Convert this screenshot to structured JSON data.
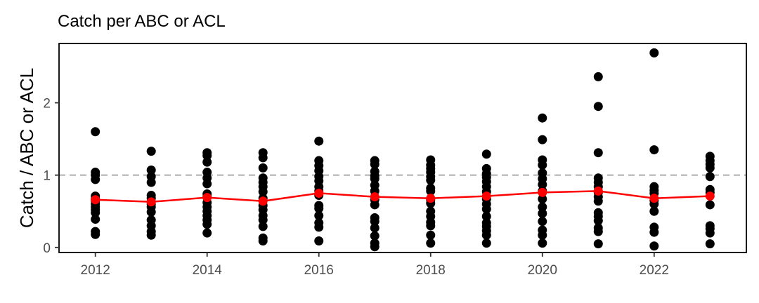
{
  "chart_data": {
    "type": "scatter",
    "title": "Catch per ABC or ACL",
    "xlabel": "",
    "ylabel": "Catch / ABC or ACL",
    "xlim": [
      2011.35,
      2023.65
    ],
    "ylim": [
      -0.07,
      2.82
    ],
    "x_ticks": [
      2012,
      2014,
      2016,
      2018,
      2020,
      2022
    ],
    "y_ticks": [
      0,
      1,
      2
    ],
    "reference_line": {
      "y": 1,
      "style": "dashed",
      "color": "#b3b3b3"
    },
    "grid": false,
    "colors": {
      "points": "#000000",
      "mean_line": "#ff0000",
      "axis_text": "#4d4d4d",
      "panel_border": "#000000"
    },
    "series": [
      {
        "type": "scatter",
        "points": [
          {
            "x": 2012,
            "y": 1.6
          },
          {
            "x": 2012,
            "y": 1.04
          },
          {
            "x": 2012,
            "y": 1.0
          },
          {
            "x": 2012,
            "y": 0.94
          },
          {
            "x": 2012,
            "y": 0.71
          },
          {
            "x": 2012,
            "y": 0.67
          },
          {
            "x": 2012,
            "y": 0.64
          },
          {
            "x": 2012,
            "y": 0.6
          },
          {
            "x": 2012,
            "y": 0.56
          },
          {
            "x": 2012,
            "y": 0.52
          },
          {
            "x": 2012,
            "y": 0.48
          },
          {
            "x": 2012,
            "y": 0.39
          },
          {
            "x": 2012,
            "y": 0.22
          },
          {
            "x": 2012,
            "y": 0.18
          },
          {
            "x": 2013,
            "y": 1.33
          },
          {
            "x": 2013,
            "y": 1.07
          },
          {
            "x": 2013,
            "y": 0.98
          },
          {
            "x": 2013,
            "y": 0.9
          },
          {
            "x": 2013,
            "y": 0.72
          },
          {
            "x": 2013,
            "y": 0.68
          },
          {
            "x": 2013,
            "y": 0.6
          },
          {
            "x": 2013,
            "y": 0.56
          },
          {
            "x": 2013,
            "y": 0.49
          },
          {
            "x": 2013,
            "y": 0.38
          },
          {
            "x": 2013,
            "y": 0.3
          },
          {
            "x": 2013,
            "y": 0.22
          },
          {
            "x": 2013,
            "y": 0.17
          },
          {
            "x": 2014,
            "y": 1.31
          },
          {
            "x": 2014,
            "y": 1.27
          },
          {
            "x": 2014,
            "y": 1.18
          },
          {
            "x": 2014,
            "y": 1.04
          },
          {
            "x": 2014,
            "y": 0.96
          },
          {
            "x": 2014,
            "y": 0.88
          },
          {
            "x": 2014,
            "y": 0.74
          },
          {
            "x": 2014,
            "y": 0.7
          },
          {
            "x": 2014,
            "y": 0.62
          },
          {
            "x": 2014,
            "y": 0.56
          },
          {
            "x": 2014,
            "y": 0.5
          },
          {
            "x": 2014,
            "y": 0.44
          },
          {
            "x": 2014,
            "y": 0.38
          },
          {
            "x": 2014,
            "y": 0.32
          },
          {
            "x": 2014,
            "y": 0.2
          },
          {
            "x": 2015,
            "y": 1.31
          },
          {
            "x": 2015,
            "y": 1.24
          },
          {
            "x": 2015,
            "y": 1.1
          },
          {
            "x": 2015,
            "y": 0.96
          },
          {
            "x": 2015,
            "y": 0.9
          },
          {
            "x": 2015,
            "y": 0.84
          },
          {
            "x": 2015,
            "y": 0.77
          },
          {
            "x": 2015,
            "y": 0.68
          },
          {
            "x": 2015,
            "y": 0.58
          },
          {
            "x": 2015,
            "y": 0.52
          },
          {
            "x": 2015,
            "y": 0.44
          },
          {
            "x": 2015,
            "y": 0.38
          },
          {
            "x": 2015,
            "y": 0.29
          },
          {
            "x": 2015,
            "y": 0.13
          },
          {
            "x": 2015,
            "y": 0.09
          },
          {
            "x": 2016,
            "y": 1.47
          },
          {
            "x": 2016,
            "y": 1.2
          },
          {
            "x": 2016,
            "y": 1.13
          },
          {
            "x": 2016,
            "y": 1.06
          },
          {
            "x": 2016,
            "y": 0.98
          },
          {
            "x": 2016,
            "y": 0.92
          },
          {
            "x": 2016,
            "y": 0.84
          },
          {
            "x": 2016,
            "y": 0.78
          },
          {
            "x": 2016,
            "y": 0.72
          },
          {
            "x": 2016,
            "y": 0.58
          },
          {
            "x": 2016,
            "y": 0.54
          },
          {
            "x": 2016,
            "y": 0.44
          },
          {
            "x": 2016,
            "y": 0.34
          },
          {
            "x": 2016,
            "y": 0.28
          },
          {
            "x": 2016,
            "y": 0.09
          },
          {
            "x": 2017,
            "y": 1.2
          },
          {
            "x": 2017,
            "y": 1.15
          },
          {
            "x": 2017,
            "y": 1.05
          },
          {
            "x": 2017,
            "y": 0.99
          },
          {
            "x": 2017,
            "y": 0.95
          },
          {
            "x": 2017,
            "y": 0.86
          },
          {
            "x": 2017,
            "y": 0.78
          },
          {
            "x": 2017,
            "y": 0.66
          },
          {
            "x": 2017,
            "y": 0.59
          },
          {
            "x": 2017,
            "y": 0.41
          },
          {
            "x": 2017,
            "y": 0.36
          },
          {
            "x": 2017,
            "y": 0.27
          },
          {
            "x": 2017,
            "y": 0.16
          },
          {
            "x": 2017,
            "y": 0.06
          },
          {
            "x": 2017,
            "y": 0.01
          },
          {
            "x": 2018,
            "y": 1.21
          },
          {
            "x": 2018,
            "y": 1.14
          },
          {
            "x": 2018,
            "y": 1.09
          },
          {
            "x": 2018,
            "y": 1.04
          },
          {
            "x": 2018,
            "y": 0.98
          },
          {
            "x": 2018,
            "y": 0.93
          },
          {
            "x": 2018,
            "y": 0.82
          },
          {
            "x": 2018,
            "y": 0.78
          },
          {
            "x": 2018,
            "y": 0.66
          },
          {
            "x": 2018,
            "y": 0.61
          },
          {
            "x": 2018,
            "y": 0.5
          },
          {
            "x": 2018,
            "y": 0.43
          },
          {
            "x": 2018,
            "y": 0.35
          },
          {
            "x": 2018,
            "y": 0.3
          },
          {
            "x": 2018,
            "y": 0.17
          },
          {
            "x": 2018,
            "y": 0.06
          },
          {
            "x": 2019,
            "y": 1.29
          },
          {
            "x": 2019,
            "y": 1.09
          },
          {
            "x": 2019,
            "y": 1.02
          },
          {
            "x": 2019,
            "y": 0.97
          },
          {
            "x": 2019,
            "y": 0.91
          },
          {
            "x": 2019,
            "y": 0.84
          },
          {
            "x": 2019,
            "y": 0.77
          },
          {
            "x": 2019,
            "y": 0.67
          },
          {
            "x": 2019,
            "y": 0.6
          },
          {
            "x": 2019,
            "y": 0.53
          },
          {
            "x": 2019,
            "y": 0.43
          },
          {
            "x": 2019,
            "y": 0.34
          },
          {
            "x": 2019,
            "y": 0.29
          },
          {
            "x": 2019,
            "y": 0.23
          },
          {
            "x": 2019,
            "y": 0.17
          },
          {
            "x": 2019,
            "y": 0.06
          },
          {
            "x": 2020,
            "y": 1.79
          },
          {
            "x": 2020,
            "y": 1.49
          },
          {
            "x": 2020,
            "y": 1.21
          },
          {
            "x": 2020,
            "y": 1.14
          },
          {
            "x": 2020,
            "y": 1.03
          },
          {
            "x": 2020,
            "y": 0.95
          },
          {
            "x": 2020,
            "y": 0.87
          },
          {
            "x": 2020,
            "y": 0.78
          },
          {
            "x": 2020,
            "y": 0.67
          },
          {
            "x": 2020,
            "y": 0.56
          },
          {
            "x": 2020,
            "y": 0.47
          },
          {
            "x": 2020,
            "y": 0.36
          },
          {
            "x": 2020,
            "y": 0.24
          },
          {
            "x": 2020,
            "y": 0.17
          },
          {
            "x": 2020,
            "y": 0.06
          },
          {
            "x": 2021,
            "y": 2.36
          },
          {
            "x": 2021,
            "y": 1.95
          },
          {
            "x": 2021,
            "y": 1.31
          },
          {
            "x": 2021,
            "y": 0.96
          },
          {
            "x": 2021,
            "y": 0.9
          },
          {
            "x": 2021,
            "y": 0.84
          },
          {
            "x": 2021,
            "y": 0.76
          },
          {
            "x": 2021,
            "y": 0.7
          },
          {
            "x": 2021,
            "y": 0.64
          },
          {
            "x": 2021,
            "y": 0.48
          },
          {
            "x": 2021,
            "y": 0.43
          },
          {
            "x": 2021,
            "y": 0.37
          },
          {
            "x": 2021,
            "y": 0.27
          },
          {
            "x": 2021,
            "y": 0.22
          },
          {
            "x": 2021,
            "y": 0.05
          },
          {
            "x": 2022,
            "y": 2.69
          },
          {
            "x": 2022,
            "y": 1.35
          },
          {
            "x": 2022,
            "y": 0.84
          },
          {
            "x": 2022,
            "y": 0.79
          },
          {
            "x": 2022,
            "y": 0.75
          },
          {
            "x": 2022,
            "y": 0.65
          },
          {
            "x": 2022,
            "y": 0.6
          },
          {
            "x": 2022,
            "y": 0.5
          },
          {
            "x": 2022,
            "y": 0.28
          },
          {
            "x": 2022,
            "y": 0.21
          },
          {
            "x": 2022,
            "y": 0.02
          },
          {
            "x": 2023,
            "y": 1.26
          },
          {
            "x": 2023,
            "y": 1.2
          },
          {
            "x": 2023,
            "y": 1.15
          },
          {
            "x": 2023,
            "y": 1.1
          },
          {
            "x": 2023,
            "y": 0.98
          },
          {
            "x": 2023,
            "y": 0.8
          },
          {
            "x": 2023,
            "y": 0.76
          },
          {
            "x": 2023,
            "y": 0.59
          },
          {
            "x": 2023,
            "y": 0.3
          },
          {
            "x": 2023,
            "y": 0.26
          },
          {
            "x": 2023,
            "y": 0.2
          },
          {
            "x": 2023,
            "y": 0.05
          }
        ]
      },
      {
        "type": "line",
        "x": [
          2012,
          2013,
          2014,
          2015,
          2016,
          2017,
          2018,
          2019,
          2020,
          2021,
          2022,
          2023
        ],
        "values": [
          0.66,
          0.63,
          0.69,
          0.64,
          0.75,
          0.7,
          0.68,
          0.71,
          0.76,
          0.78,
          0.68,
          0.71
        ]
      }
    ]
  }
}
